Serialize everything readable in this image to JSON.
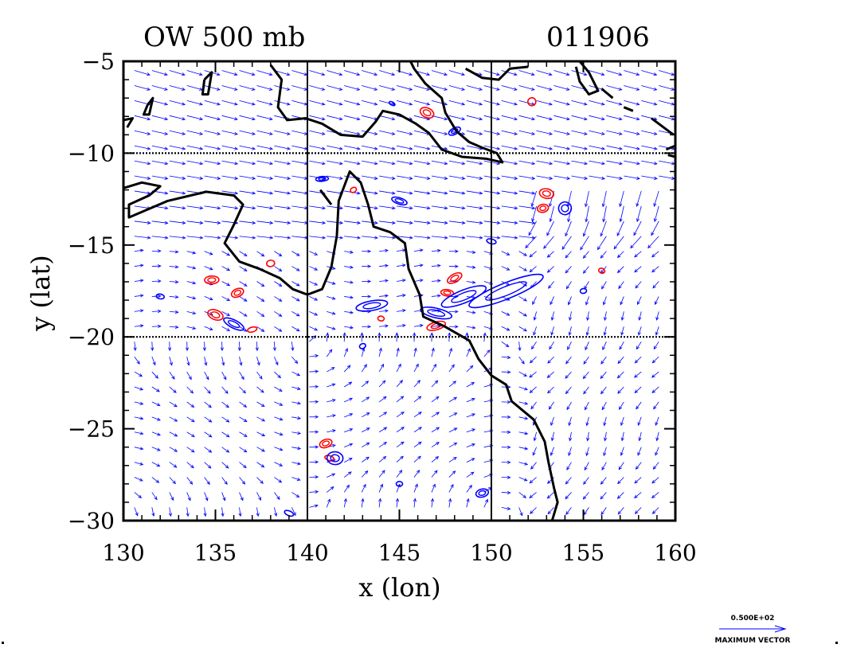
{
  "title_left": "OW 500 mb",
  "title_right": "011906",
  "x_axis_label": "x (lon)",
  "y_axis_label": "y (lat)",
  "x_ticks": [
    "130",
    "135",
    "140",
    "145",
    "150",
    "155",
    "160"
  ],
  "y_ticks": [
    "-5",
    "-10",
    "-15",
    "-20",
    "-25",
    "-30"
  ],
  "legend": {
    "magnitude": "0.500E+02",
    "caption": "MAXIMUM VECTOR"
  },
  "colors": {
    "vectors": "#0000ff",
    "positive_contour": "#ff0000",
    "negative_contour": "#0000ff",
    "coastline": "#000000"
  },
  "map_extent": {
    "lon": [
      130,
      160
    ],
    "lat": [
      -30,
      -5
    ]
  },
  "grid_lines": {
    "lon": [
      140,
      150
    ],
    "lat": [
      -10,
      -20
    ]
  }
}
